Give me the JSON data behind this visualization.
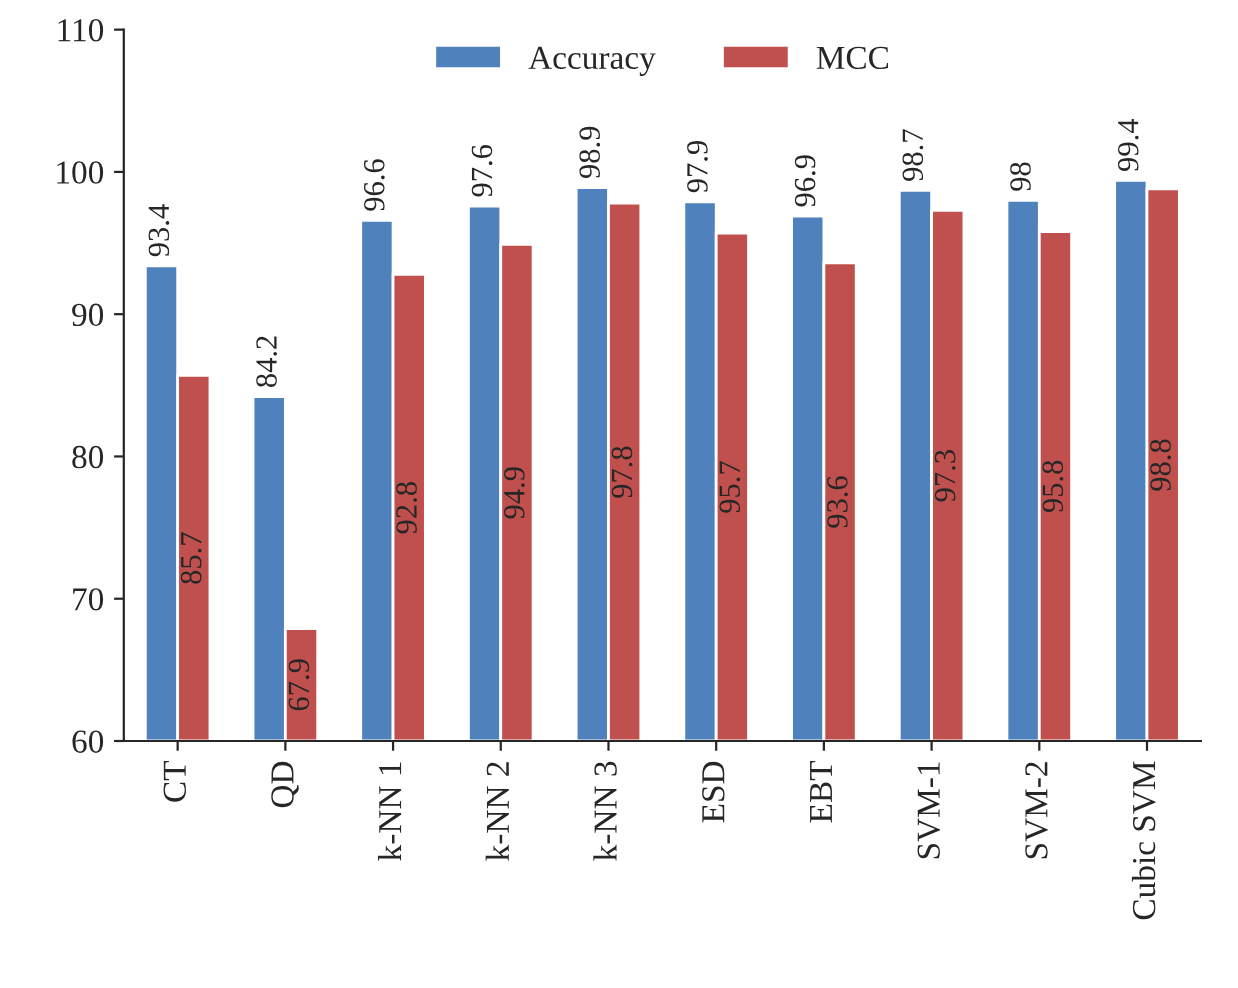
{
  "chart_data": {
    "type": "bar",
    "categories": [
      "CT",
      "QD",
      "k-NN 1",
      "k-NN 2",
      "k-NN 3",
      "ESD",
      "EBT",
      "SVM-1",
      "SVM-2",
      "Cubic SVM"
    ],
    "series": [
      {
        "name": "Accuracy",
        "color": "#4f81bd",
        "values": [
          93.4,
          84.2,
          96.6,
          97.6,
          98.9,
          97.9,
          96.9,
          98.7,
          98,
          99.4
        ]
      },
      {
        "name": "MCC",
        "color": "#c0504d",
        "values": [
          85.7,
          67.9,
          92.8,
          94.9,
          97.8,
          95.7,
          93.6,
          97.3,
          95.8,
          98.8
        ]
      }
    ],
    "ylim": [
      60,
      110
    ],
    "yticks": [
      60,
      70,
      80,
      90,
      100,
      110
    ],
    "data_labels": true,
    "legend": "top",
    "grid": false
  }
}
